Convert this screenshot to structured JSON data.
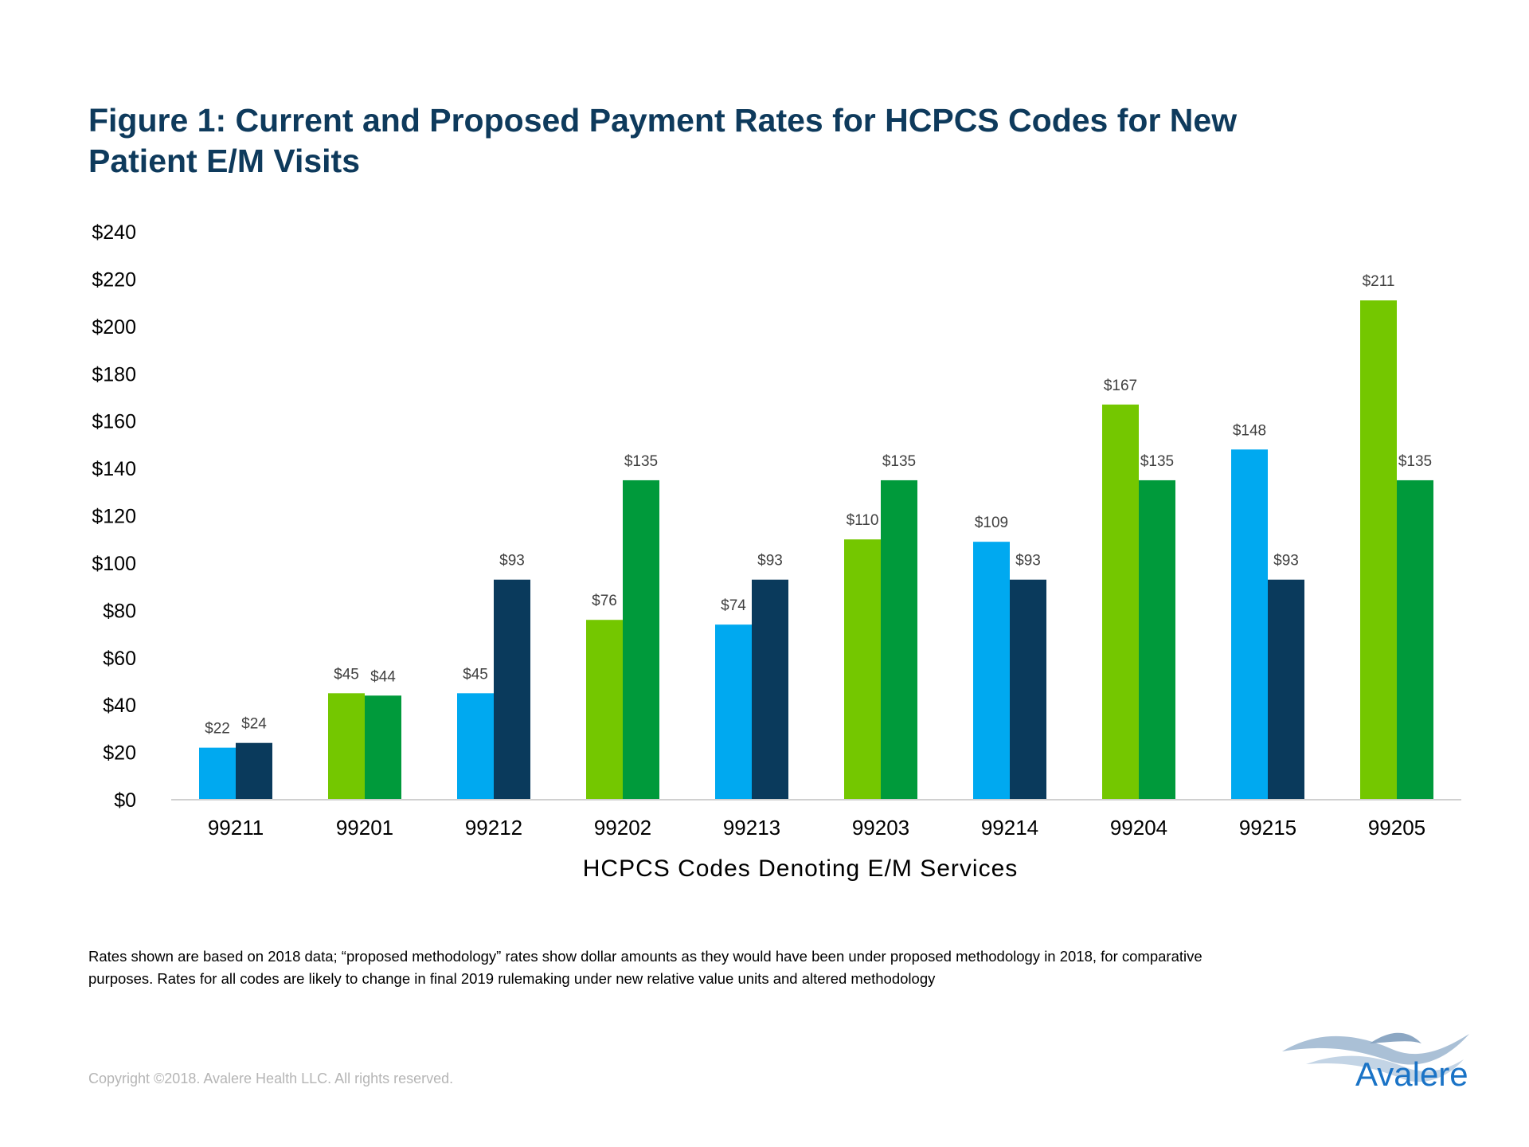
{
  "title": {
    "line1": "Figure 1: Current and Proposed Payment Rates for HCPCS Codes for New",
    "line2": "Patient E/M Visits"
  },
  "colors": {
    "light_blue": "#00a9f0",
    "dark_navy": "#0a3a5c",
    "light_green": "#74c700",
    "dark_green": "#009a3b",
    "axis": "#d0d0d0",
    "title": "#0e3a5c",
    "logo": "#1a73c6"
  },
  "chart_data": {
    "type": "bar",
    "xlabel": "HCPCS Codes Denoting E/M Services",
    "ylabel": "",
    "ylim": [
      0,
      240
    ],
    "yticks": [
      "$0",
      "$20",
      "$40",
      "$60",
      "$80",
      "$100",
      "$120",
      "$140",
      "$160",
      "$180",
      "$200",
      "$220",
      "$240"
    ],
    "grid": false,
    "categories": [
      "99211",
      "99201",
      "99212",
      "99202",
      "99213",
      "99203",
      "99214",
      "99204",
      "99215",
      "99205"
    ],
    "groups": [
      {
        "code": "99211",
        "bars": [
          {
            "value": 22,
            "label": "$22",
            "color": "#00a9f0"
          },
          {
            "value": 24,
            "label": "$24",
            "color": "#0a3a5c"
          }
        ]
      },
      {
        "code": "99201",
        "bars": [
          {
            "value": 45,
            "label": "$45",
            "color": "#74c700"
          },
          {
            "value": 44,
            "label": "$44",
            "color": "#009a3b"
          }
        ]
      },
      {
        "code": "99212",
        "bars": [
          {
            "value": 45,
            "label": "$45",
            "color": "#00a9f0"
          },
          {
            "value": 93,
            "label": "$93",
            "color": "#0a3a5c"
          }
        ]
      },
      {
        "code": "99202",
        "bars": [
          {
            "value": 76,
            "label": "$76",
            "color": "#74c700"
          },
          {
            "value": 135,
            "label": "$135",
            "color": "#009a3b"
          }
        ]
      },
      {
        "code": "99213",
        "bars": [
          {
            "value": 74,
            "label": "$74",
            "color": "#00a9f0"
          },
          {
            "value": 93,
            "label": "$93",
            "color": "#0a3a5c"
          }
        ]
      },
      {
        "code": "99203",
        "bars": [
          {
            "value": 110,
            "label": "$110",
            "color": "#74c700"
          },
          {
            "value": 135,
            "label": "$135",
            "color": "#009a3b"
          }
        ]
      },
      {
        "code": "99214",
        "bars": [
          {
            "value": 109,
            "label": "$109",
            "color": "#00a9f0"
          },
          {
            "value": 93,
            "label": "$93",
            "color": "#0a3a5c"
          }
        ]
      },
      {
        "code": "99204",
        "bars": [
          {
            "value": 167,
            "label": "$167",
            "color": "#74c700"
          },
          {
            "value": 135,
            "label": "$135",
            "color": "#009a3b"
          }
        ]
      },
      {
        "code": "99215",
        "bars": [
          {
            "value": 148,
            "label": "$148",
            "color": "#00a9f0"
          },
          {
            "value": 93,
            "label": "$93",
            "color": "#0a3a5c"
          }
        ]
      },
      {
        "code": "99205",
        "bars": [
          {
            "value": 211,
            "label": "$211",
            "color": "#74c700"
          },
          {
            "value": 135,
            "label": "$135",
            "color": "#009a3b"
          }
        ]
      }
    ]
  },
  "footnote": {
    "line1": "Rates shown are based on 2018 data; “proposed methodology” rates show dollar amounts as they would have been under proposed methodology in 2018, for comparative",
    "line2": "purposes. Rates for all codes are likely to change in final 2019 rulemaking under new relative value units and altered methodology"
  },
  "copyright": "Copyright ©2018. Avalere Health LLC. All rights reserved.",
  "logo": {
    "icon": "avalere-wave-logo-icon",
    "text": "Avalere"
  }
}
